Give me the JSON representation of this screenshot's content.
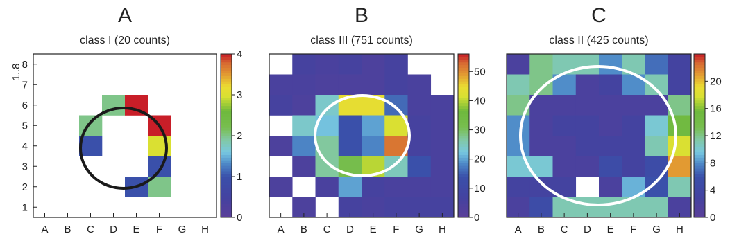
{
  "chart_data": [
    {
      "type": "heatmap",
      "letter": "A",
      "title": "class I (20 counts)",
      "x_labels": [
        "A",
        "B",
        "C",
        "D",
        "E",
        "F",
        "G",
        "H"
      ],
      "y_labels": [
        "1",
        "2",
        "3",
        "4",
        "5",
        "6",
        "7",
        "8"
      ],
      "ylabel": "1..8",
      "zlim": [
        0,
        4
      ],
      "colorbar_ticks": [
        "0",
        "1",
        "2",
        "3",
        "4"
      ],
      "ellipse_color": "#1a1a1a",
      "cells": [
        {
          "x": "D",
          "y": "6",
          "v": 2
        },
        {
          "x": "E",
          "y": "6",
          "v": 4
        },
        {
          "x": "C",
          "y": "5",
          "v": 2
        },
        {
          "x": "F",
          "y": "5",
          "v": 4
        },
        {
          "x": "C",
          "y": "4",
          "v": 1
        },
        {
          "x": "F",
          "y": "4",
          "v": 3
        },
        {
          "x": "F",
          "y": "3",
          "v": 1
        },
        {
          "x": "E",
          "y": "2",
          "v": 1
        },
        {
          "x": "F",
          "y": "2",
          "v": 2
        }
      ]
    },
    {
      "type": "heatmap",
      "letter": "B",
      "title": "class III (751 counts)",
      "x_labels": [
        "A",
        "B",
        "C",
        "D",
        "E",
        "F",
        "G",
        "H"
      ],
      "zlim": [
        0,
        56
      ],
      "colorbar_ticks": [
        "0",
        "10",
        "20",
        "30",
        "40",
        "50"
      ],
      "ellipse_color": "#ffffff",
      "grid": [
        [
          null,
          6,
          5,
          6,
          4,
          6,
          null,
          null
        ],
        [
          5,
          5,
          4,
          4,
          4,
          6,
          5,
          null
        ],
        [
          6,
          4,
          24,
          44,
          44,
          16,
          5,
          5
        ],
        [
          null,
          24,
          22,
          14,
          20,
          42,
          6,
          5
        ],
        [
          4,
          18,
          27,
          14,
          18,
          52,
          6,
          5
        ],
        [
          null,
          4,
          27,
          32,
          40,
          25,
          14,
          5
        ],
        [
          4,
          null,
          5,
          20,
          6,
          5,
          5,
          5
        ],
        [
          null,
          4,
          null,
          6,
          5,
          6,
          6,
          6
        ]
      ]
    },
    {
      "type": "heatmap",
      "letter": "C",
      "title": "class II (425 counts)",
      "x_labels": [
        "A",
        "B",
        "C",
        "D",
        "E",
        "F",
        "G",
        "H"
      ],
      "zlim": [
        0,
        24
      ],
      "colorbar_ticks": [
        "0",
        "4",
        "8",
        "12",
        "16",
        "20"
      ],
      "ellipse_color": "#ffffff",
      "grid": [
        [
          2,
          12,
          11,
          11,
          8,
          11,
          7,
          3
        ],
        [
          11,
          12,
          8,
          2,
          3,
          8,
          11,
          3
        ],
        [
          12,
          2,
          2,
          2,
          2,
          2,
          2,
          12
        ],
        [
          8,
          2,
          3,
          3,
          2,
          3,
          10,
          15
        ],
        [
          8,
          2,
          2,
          3,
          3,
          3,
          11,
          18
        ],
        [
          10,
          10,
          2,
          2,
          5,
          3,
          5,
          21
        ],
        [
          3,
          3,
          3,
          null,
          2,
          9,
          6,
          11
        ],
        [
          2,
          5,
          11,
          11,
          11,
          11,
          11,
          2
        ]
      ]
    }
  ]
}
